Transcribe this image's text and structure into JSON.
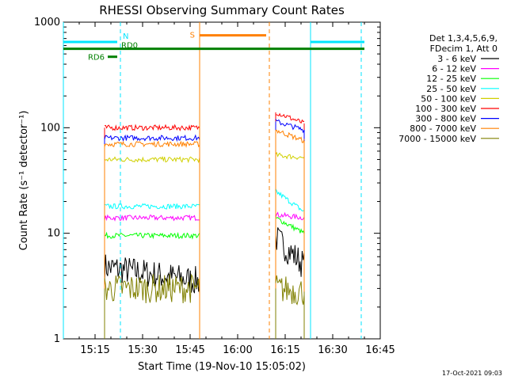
{
  "chart_data": {
    "type": "line",
    "title": "RHESSI Observing Summary Count Rates",
    "xlabel": "Start Time (19-Nov-10 15:05:02)",
    "ylabel": "Count Rate (s⁻¹ detector⁻¹)",
    "ylog": true,
    "ylim": [
      1,
      1000
    ],
    "xlim": [
      "15:05",
      "16:45"
    ],
    "x_ticks": [
      "15:15",
      "15:30",
      "15:45",
      "16:00",
      "16:15",
      "16:30",
      "16:45"
    ],
    "y_ticks": [
      "1",
      "10",
      "100",
      "1000"
    ],
    "legend": {
      "placement": "top-right",
      "header": [
        "Det 1,3,4,5,6,9,",
        "FDecim 1, Att 0"
      ]
    },
    "flags": [
      {
        "label": "N",
        "color": "#00e5ff",
        "value": 650,
        "segments": [
          [
            "15:05",
            "15:22"
          ],
          [
            "16:23",
            "16:40"
          ]
        ]
      },
      {
        "label": "S",
        "color": "#ff8000",
        "value": 750,
        "segments": [
          [
            "15:48",
            "16:09"
          ]
        ]
      },
      {
        "label": "RD0",
        "color": "#008000",
        "value": 560,
        "segments": [
          [
            "15:05",
            "16:40"
          ]
        ]
      },
      {
        "label": "RD6",
        "color": "#008000",
        "value": 470,
        "segments": [
          [
            "15:19",
            "15:22"
          ]
        ]
      }
    ],
    "vlines": [
      {
        "x": "15:05",
        "color": "#00e5ff",
        "style": "solid"
      },
      {
        "x": "15:23",
        "color": "#00e5ff",
        "style": "dashed"
      },
      {
        "x": "15:48",
        "color": "#ff8000",
        "style": "solid"
      },
      {
        "x": "16:10",
        "color": "#ff8000",
        "style": "dashed"
      },
      {
        "x": "16:23",
        "color": "#00e5ff",
        "style": "solid"
      },
      {
        "x": "16:39",
        "color": "#00e5ff",
        "style": "dashed"
      }
    ],
    "segments": [
      [
        "15:18",
        "15:48"
      ],
      [
        "16:12",
        "16:21"
      ]
    ],
    "series": [
      {
        "name": "3 - 6 keV",
        "color": "#000000",
        "values": [
          [
            4.8,
            3.5
          ],
          [
            9.0,
            5.0
          ]
        ]
      },
      {
        "name": "6 - 12 keV",
        "color": "#ff00ff",
        "values": [
          [
            14,
            14
          ],
          [
            15,
            14
          ]
        ]
      },
      {
        "name": "12 - 25 keV",
        "color": "#00ff00",
        "values": [
          [
            9.5,
            9.5
          ],
          [
            14,
            10
          ]
        ]
      },
      {
        "name": "25 - 50 keV",
        "color": "#00ffff",
        "values": [
          [
            18,
            18
          ],
          [
            25,
            16
          ]
        ]
      },
      {
        "name": "50 - 100 keV",
        "color": "#d0d000",
        "values": [
          [
            50,
            50
          ],
          [
            55,
            52
          ]
        ]
      },
      {
        "name": "100 - 300 keV",
        "color": "#ff0000",
        "values": [
          [
            100,
            100
          ],
          [
            140,
            110
          ]
        ]
      },
      {
        "name": "300 - 800 keV",
        "color": "#0000ff",
        "values": [
          [
            80,
            80
          ],
          [
            115,
            95
          ]
        ]
      },
      {
        "name": "800 - 7000 keV",
        "color": "#ff8000",
        "values": [
          [
            70,
            70
          ],
          [
            95,
            75
          ]
        ]
      },
      {
        "name": "7000 - 15000 keV",
        "color": "#808000",
        "values": [
          [
            3.0,
            3.0
          ],
          [
            3.0,
            2.8
          ]
        ]
      }
    ]
  },
  "footer": {
    "timestamp": "17-Oct-2021 09:03"
  }
}
